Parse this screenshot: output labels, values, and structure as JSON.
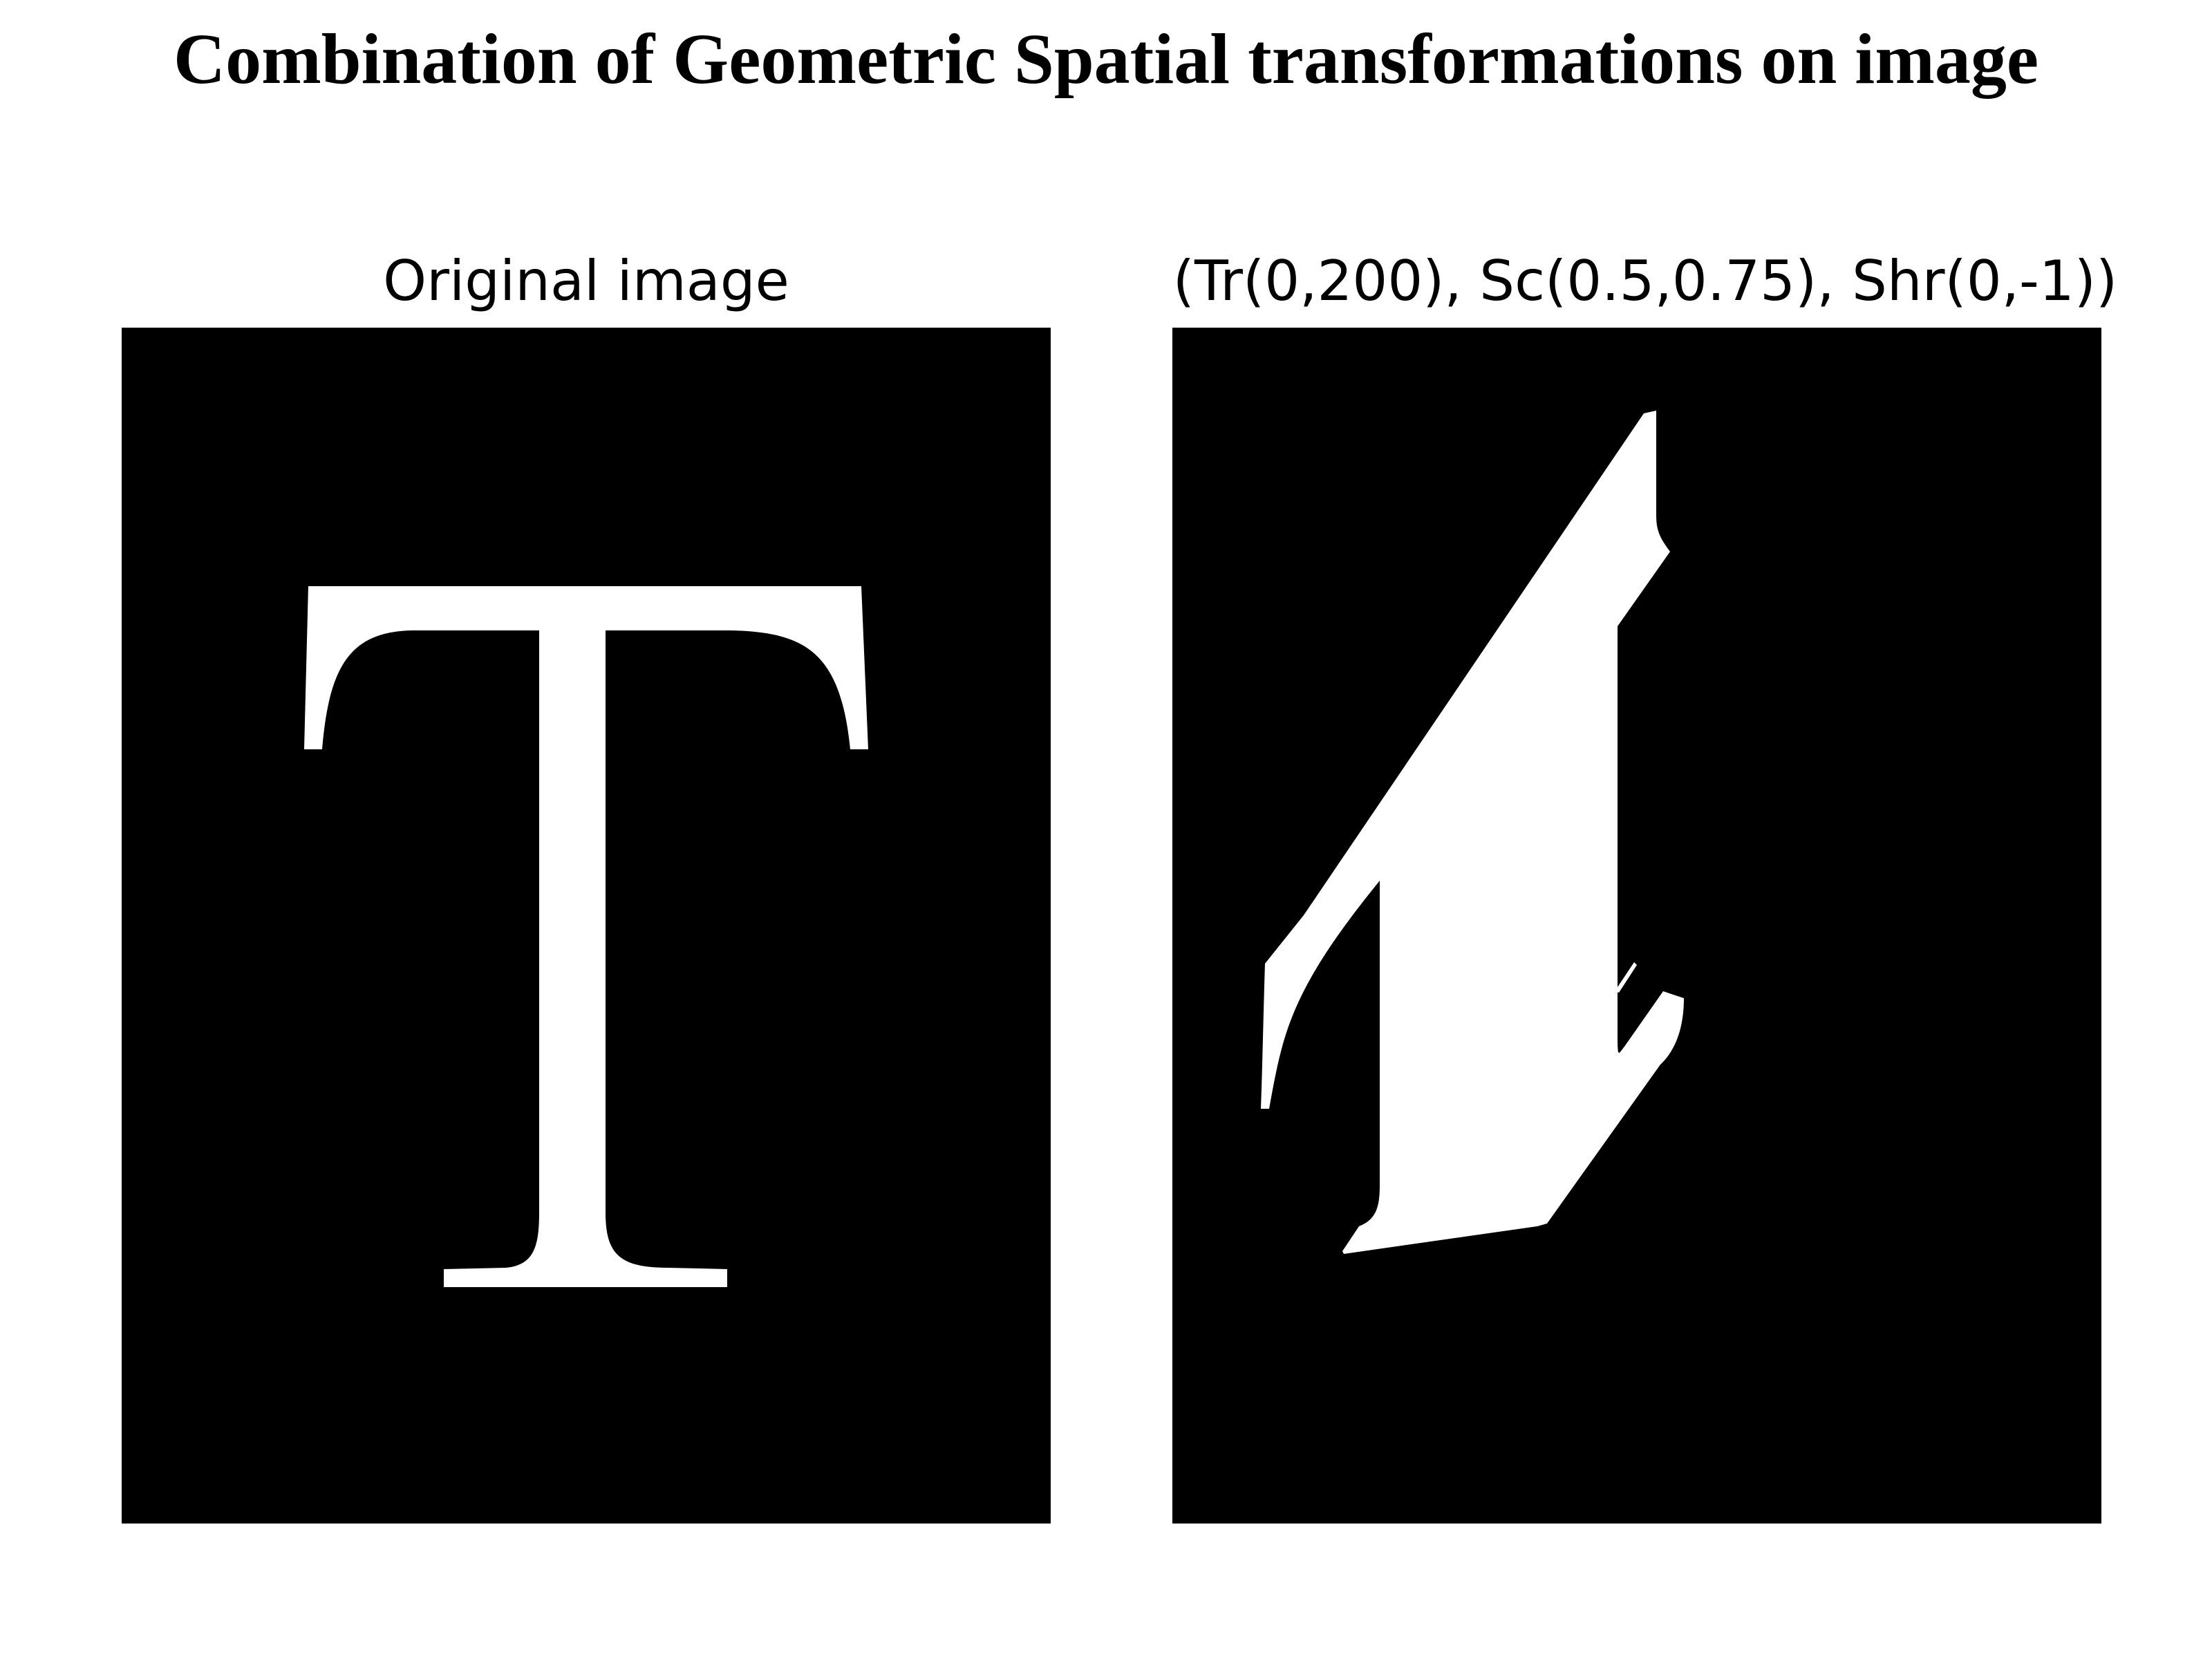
{
  "title": "Combination of Geometric Spatial transformations on image",
  "panels": [
    {
      "title": "Original image",
      "glyph": "T",
      "background": "#000000",
      "foreground": "#ffffff"
    },
    {
      "title": "(Tr(0,200), Sc(0.5,0.75), Shr(0,-1))",
      "glyph": "T",
      "background": "#000000",
      "foreground": "#ffffff"
    }
  ]
}
